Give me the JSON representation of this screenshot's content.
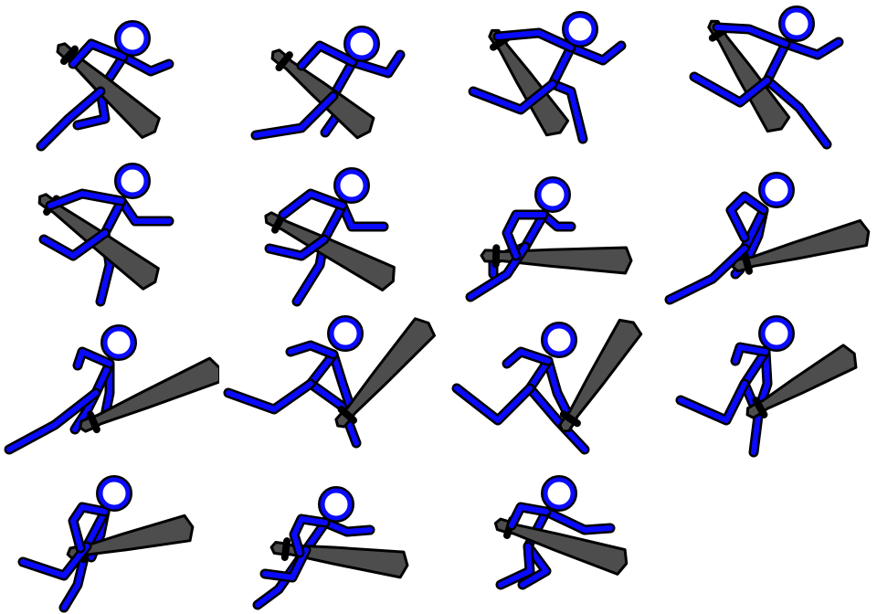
{
  "sprite_sheet": {
    "colors": {
      "background": "#ffffff",
      "figure_fill": "#0a0aff",
      "outline": "#000000",
      "bat_fill": "#4d4d4d"
    },
    "frames": [
      {
        "pose": "run-bat-shoulder-1"
      },
      {
        "pose": "run-bat-shoulder-2"
      },
      {
        "pose": "run-bat-shoulder-3"
      },
      {
        "pose": "run-bat-shoulder-4"
      },
      {
        "pose": "leap-bat-diagonal-1"
      },
      {
        "pose": "leap-bat-diagonal-2"
      },
      {
        "pose": "crouch-bat-forward"
      },
      {
        "pose": "lunge-bat-raised"
      },
      {
        "pose": "lunge-bat-forward"
      },
      {
        "pose": "stride-bat-upright-1"
      },
      {
        "pose": "stride-bat-upright-2"
      },
      {
        "pose": "kick-bat-forward"
      },
      {
        "pose": "lean-bat-forward"
      },
      {
        "pose": "crouch-bat-level"
      },
      {
        "pose": "crouch-bat-shoulder"
      }
    ]
  }
}
